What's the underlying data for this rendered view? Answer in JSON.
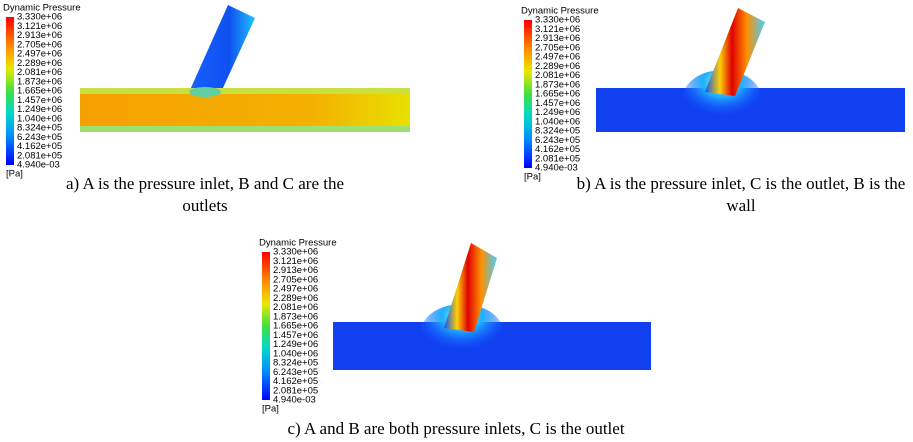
{
  "panels": [
    {
      "legend_title": "Dynamic Pressure",
      "legend_labels": [
        "3.330e+06",
        "3.121e+06",
        "2.913e+06",
        "2.705e+06",
        "2.497e+06",
        "2.289e+06",
        "2.081e+06",
        "1.873e+06",
        "1.665e+06",
        "1.457e+06",
        "1.249e+06",
        "1.040e+06",
        "8.324e+05",
        "6.243e+05",
        "4.162e+05",
        "2.081e+05",
        "4.940e-03"
      ],
      "unit": "[Pa]",
      "caption": "a) A is the pressure inlet, B and C are the outlets"
    },
    {
      "legend_title": "Dynamic Pressure",
      "legend_labels": [
        "3.330e+06",
        "3.121e+06",
        "2.913e+06",
        "2.705e+06",
        "2.497e+06",
        "2.289e+06",
        "2.081e+06",
        "1.873e+06",
        "1.665e+06",
        "1.457e+06",
        "1.249e+06",
        "1.040e+06",
        "8.324e+05",
        "6.243e+05",
        "4.162e+05",
        "2.081e+05",
        "4.940e-03"
      ],
      "unit": "[Pa]",
      "caption": "b) A is the pressure inlet, C is the outlet, B is the wall"
    },
    {
      "legend_title": "Dynamic Pressure",
      "legend_labels": [
        "3.330e+06",
        "3.121e+06",
        "2.913e+06",
        "2.705e+06",
        "2.497e+06",
        "2.289e+06",
        "2.081e+06",
        "1.873e+06",
        "1.665e+06",
        "1.457e+06",
        "1.249e+06",
        "1.040e+06",
        "8.324e+05",
        "6.243e+05",
        "4.162e+05",
        "2.081e+05",
        "4.940e-03"
      ],
      "unit": "[Pa]",
      "caption": "c) A and B are both pressure inlets, C is the outlet"
    }
  ]
}
